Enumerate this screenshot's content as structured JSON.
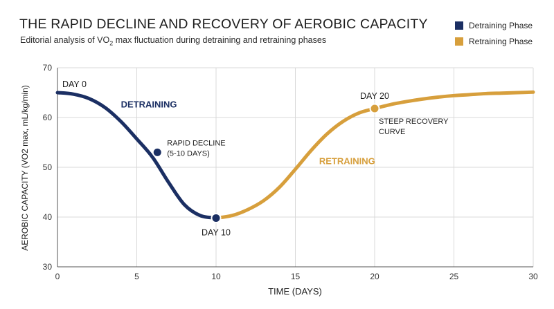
{
  "title": "THE RAPID DECLINE AND RECOVERY OF AEROBIC CAPACITY",
  "subtitle_pre": "Editorial analysis of VO",
  "subtitle_sub": "2",
  "subtitle_post": " max fluctuation during detraining and retraining phases",
  "legend": [
    {
      "label": "Detraining Phase",
      "color": "#1b2f63"
    },
    {
      "label": "Retraining Phase",
      "color": "#d79f3c"
    }
  ],
  "chart_data": {
    "type": "line",
    "xlabel": "TIME (DAYS)",
    "ylabel": "AEROBIC CAPACITY (VO2 max, mL/kg/min)",
    "xlim": [
      0,
      30
    ],
    "ylim": [
      30,
      70
    ],
    "xticks": [
      0,
      5,
      10,
      15,
      20,
      25,
      30
    ],
    "yticks": [
      30,
      40,
      50,
      60,
      70
    ],
    "grid": true,
    "series": [
      {
        "name": "Detraining Phase",
        "color": "#1b2f63",
        "x": [
          0,
          1,
          2,
          3,
          4,
          5,
          6,
          7,
          8,
          9,
          10
        ],
        "y": [
          65.0,
          64.7,
          63.8,
          62.0,
          59.2,
          55.7,
          52.0,
          47.0,
          42.5,
          40.3,
          39.8
        ]
      },
      {
        "name": "Retraining Phase",
        "color": "#d79f3c",
        "x": [
          10,
          11,
          12,
          13,
          14,
          15,
          16,
          17,
          18,
          19,
          20,
          21,
          22,
          23,
          24,
          25,
          26,
          27,
          28,
          29,
          30
        ],
        "y": [
          39.8,
          40.3,
          41.5,
          43.3,
          46.0,
          49.6,
          53.4,
          56.7,
          59.2,
          60.9,
          61.8,
          62.6,
          63.2,
          63.7,
          64.1,
          64.4,
          64.6,
          64.8,
          64.9,
          65.0,
          65.1
        ]
      }
    ],
    "markers": [
      {
        "x": 6.3,
        "y": 53.0,
        "color": "#1b2f63"
      },
      {
        "x": 10,
        "y": 39.8,
        "color": "#1b2f63"
      },
      {
        "x": 20,
        "y": 61.8,
        "color": "#d79f3c"
      }
    ],
    "annotations": [
      {
        "text": "DAY 0",
        "x": 0,
        "y": 65
      },
      {
        "text": "DETRAINING",
        "x": 4,
        "y": 62
      },
      {
        "text": "RAPID DECLINE",
        "x": 6.3,
        "y": 53
      },
      {
        "text": "(5-10 DAYS)",
        "x": 6.3,
        "y": 53
      },
      {
        "text": "DAY 10",
        "x": 10,
        "y": 39.8
      },
      {
        "text": "DAY 20",
        "x": 20,
        "y": 61.8
      },
      {
        "text": "STEEP RECOVERY",
        "x": 20,
        "y": 61.8
      },
      {
        "text": "CURVE",
        "x": 20,
        "y": 61.8
      },
      {
        "text": "RETRAINING",
        "x": 16.5,
        "y": 52
      }
    ]
  }
}
